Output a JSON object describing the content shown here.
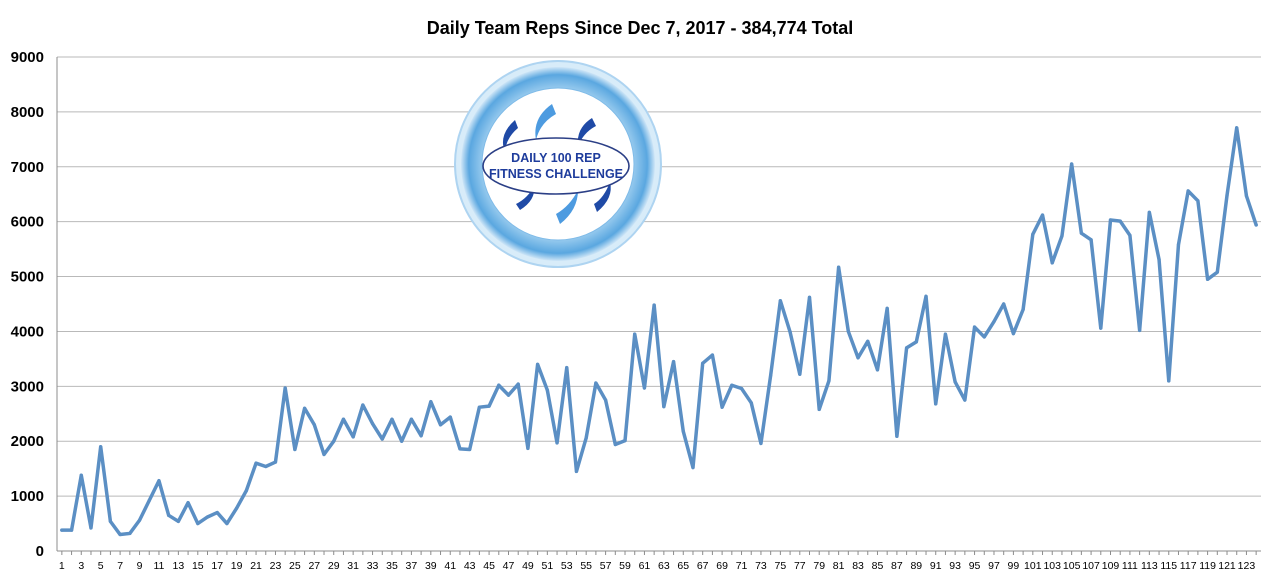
{
  "chart_data": {
    "type": "line",
    "title": "Daily Team Reps Since Dec 7, 2017 - 384,774 Total",
    "xlabel": "",
    "ylabel": "",
    "ylim": [
      0,
      9000
    ],
    "yticks": [
      0,
      1000,
      2000,
      3000,
      4000,
      5000,
      6000,
      7000,
      8000,
      9000
    ],
    "grid": "horizontal",
    "legend": "none",
    "line_color": "#5b8fc4",
    "x": [
      1,
      2,
      3,
      4,
      5,
      6,
      7,
      8,
      9,
      10,
      11,
      12,
      13,
      14,
      15,
      16,
      17,
      18,
      19,
      20,
      21,
      22,
      23,
      24,
      25,
      26,
      27,
      28,
      29,
      30,
      31,
      32,
      33,
      34,
      35,
      36,
      37,
      38,
      39,
      40,
      41,
      42,
      43,
      44,
      45,
      46,
      47,
      48,
      49,
      50,
      51,
      52,
      53,
      54,
      55,
      56,
      57,
      58,
      59,
      60,
      61,
      62,
      63,
      64,
      65,
      66,
      67,
      68,
      69,
      70,
      71,
      72,
      73,
      74,
      75,
      76,
      77,
      78,
      79,
      80,
      81,
      82,
      83,
      84,
      85,
      86,
      87,
      88,
      89,
      90,
      91,
      92,
      93,
      94,
      95,
      96,
      97,
      98,
      99,
      100,
      101,
      102,
      103,
      104,
      105,
      106,
      107,
      108,
      109,
      110,
      111,
      112,
      113,
      114,
      115,
      116,
      117,
      118,
      119,
      120,
      121,
      122,
      123,
      124
    ],
    "x_tick_labels": [
      1,
      3,
      5,
      7,
      9,
      11,
      13,
      15,
      17,
      19,
      21,
      23,
      25,
      27,
      29,
      31,
      33,
      35,
      37,
      39,
      41,
      43,
      45,
      47,
      49,
      51,
      53,
      55,
      57,
      59,
      61,
      63,
      65,
      67,
      69,
      71,
      73,
      75,
      77,
      79,
      81,
      83,
      85,
      87,
      89,
      91,
      93,
      95,
      97,
      99,
      101,
      103,
      105,
      107,
      109,
      111,
      113,
      115,
      117,
      119,
      121,
      123
    ],
    "series": [
      {
        "values": [
          380,
          380,
          1380,
          420,
          1900,
          540,
          300,
          320,
          560,
          920,
          1280,
          650,
          540,
          880,
          500,
          620,
          700,
          500,
          780,
          1100,
          1600,
          1540,
          1620,
          2970,
          1850,
          2600,
          2300,
          1760,
          2000,
          2400,
          2080,
          2660,
          2320,
          2040,
          2400,
          2000,
          2400,
          2100,
          2720,
          2300,
          2440,
          1860,
          1850,
          2620,
          2640,
          3020,
          2840,
          3040,
          1870,
          3400,
          2930,
          1970,
          3340,
          1450,
          2060,
          3060,
          2750,
          1940,
          2010,
          3950,
          2970,
          4480,
          2630,
          3450,
          2180,
          1520,
          3420,
          3570,
          2620,
          3020,
          2960,
          2700,
          1960,
          3200,
          4560,
          3990,
          3220,
          4620,
          2580,
          3100,
          5170,
          4000,
          3520,
          3820,
          3300,
          4420,
          2090,
          3700,
          3810,
          4640,
          2680,
          3950,
          3080,
          2750,
          4080,
          3900,
          4180,
          4500,
          3960,
          4400,
          5770,
          6120,
          5250,
          5740,
          7050,
          5790,
          5670,
          4060,
          6030,
          6010,
          5750,
          4020,
          6170,
          5310,
          3100,
          5580,
          6560,
          6380,
          4950,
          5080,
          6480,
          7710,
          6470,
          5940
        ]
      }
    ]
  },
  "logo": {
    "line1": "DAILY 100 REP",
    "line2": "FITNESS CHALLENGE"
  }
}
